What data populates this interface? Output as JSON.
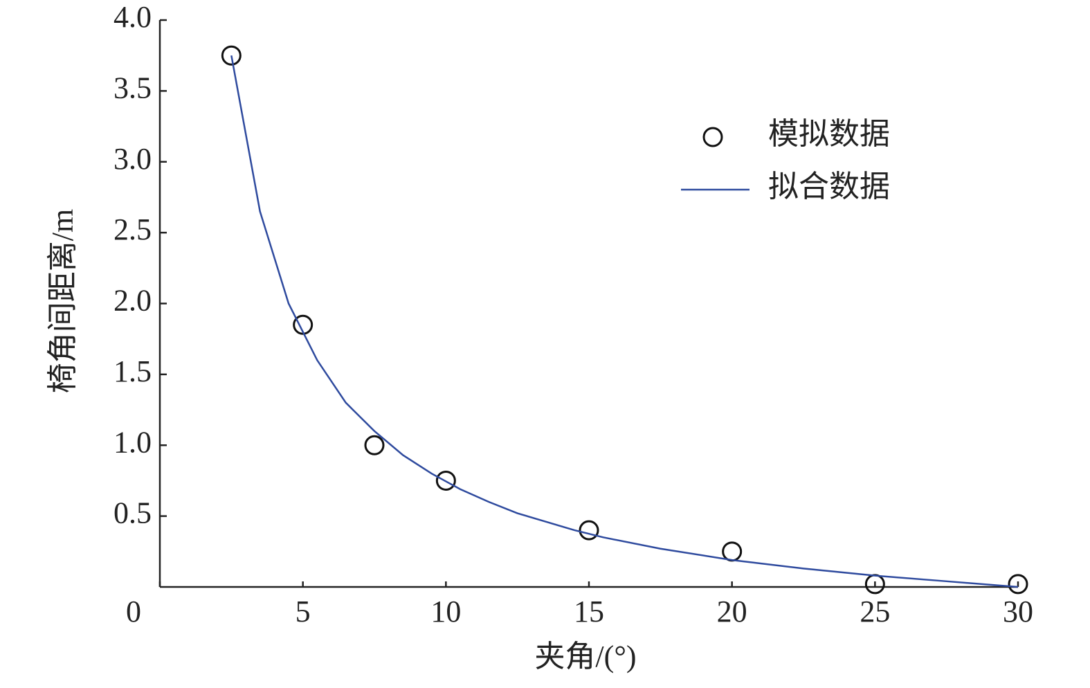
{
  "chart_data": {
    "type": "scatter",
    "xlabel": "夹角/(°)",
    "ylabel": "椅角间距离/m",
    "xlim": [
      0,
      30
    ],
    "ylim": [
      0,
      4
    ],
    "xticks": [
      0,
      5,
      10,
      15,
      20,
      25,
      30
    ],
    "yticks": [
      0.5,
      {
        "value": 1,
        "label": "1.0"
      },
      1.5,
      {
        "value": 2,
        "label": "2.0"
      },
      2.5,
      {
        "value": 3,
        "label": "3.0"
      },
      3.5,
      {
        "value": 4,
        "label": "4.0"
      }
    ],
    "grid": false,
    "legend": "upper right",
    "series": [
      {
        "name": "模拟数据",
        "type": "scatter",
        "color": "#111111",
        "x": [
          2.5,
          5,
          7.5,
          10,
          15,
          20,
          25,
          30
        ],
        "values": [
          3.75,
          1.85,
          1.0,
          0.75,
          0.4,
          0.25,
          0.02,
          0.02
        ]
      },
      {
        "name": "拟合数据",
        "type": "line",
        "color": "#2e4a9e",
        "x": [
          2.5,
          3.5,
          4.5,
          5.5,
          6.5,
          7.5,
          8.5,
          9.5,
          10.5,
          11.5,
          12.5,
          13.5,
          14.5,
          15.5,
          17.5,
          20,
          22.5,
          25,
          27.5,
          30
        ],
        "values": [
          3.75,
          2.65,
          2.0,
          1.6,
          1.3,
          1.1,
          0.93,
          0.8,
          0.69,
          0.6,
          0.52,
          0.46,
          0.4,
          0.35,
          0.27,
          0.19,
          0.13,
          0.08,
          0.04,
          0.0
        ]
      }
    ]
  }
}
